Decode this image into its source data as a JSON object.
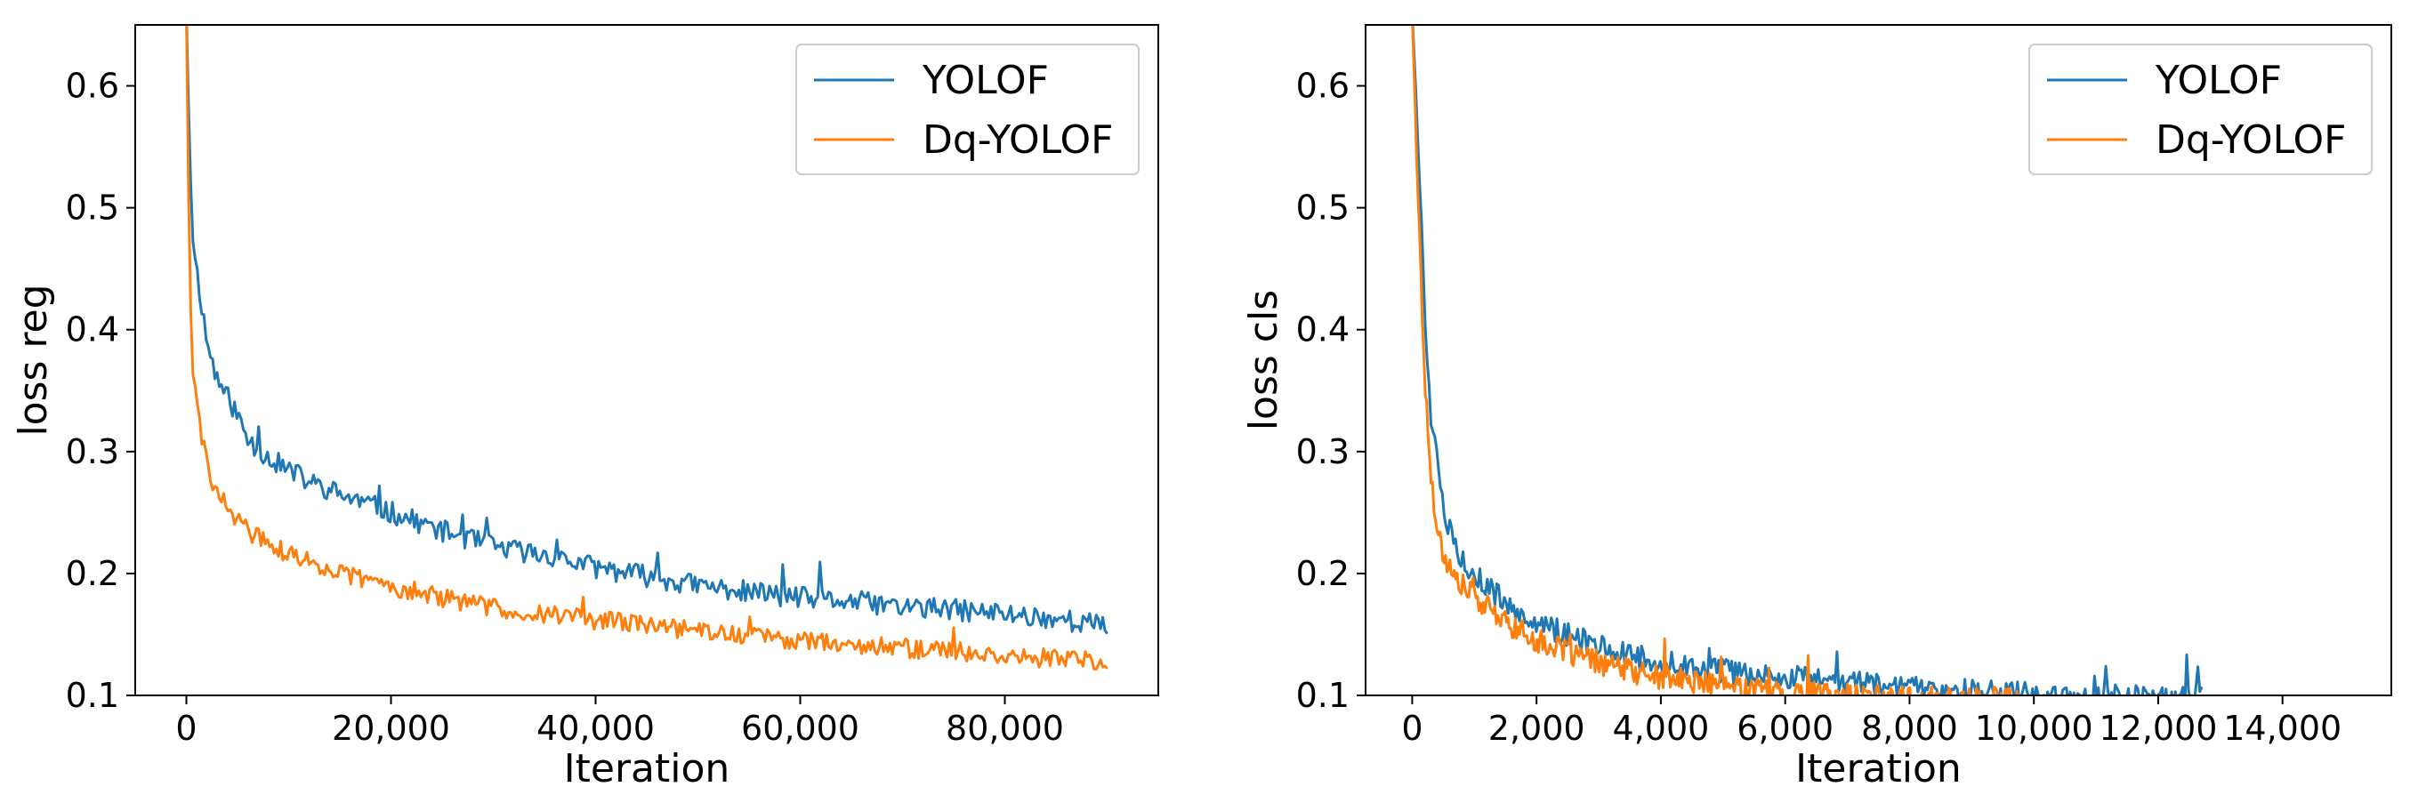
{
  "chart_data": [
    {
      "type": "line",
      "title": "",
      "xlabel": "Iteration",
      "ylabel": "loss reg",
      "xlim": [
        -5000,
        95000
      ],
      "ylim": [
        0.1,
        0.65
      ],
      "xticks": [
        0,
        20000,
        40000,
        60000,
        80000
      ],
      "xtick_labels": [
        "0",
        "20,000",
        "40,000",
        "60,000",
        "80,000"
      ],
      "yticks": [
        0.1,
        0.2,
        0.3,
        0.4,
        0.5,
        0.6
      ],
      "ytick_labels": [
        "0.1",
        "0.2",
        "0.3",
        "0.4",
        "0.5",
        "0.6"
      ],
      "legend_position": "top-right",
      "grid": false,
      "series": [
        {
          "name": "YOLOF",
          "color": "#1f77b4",
          "noise": 0.009,
          "seed": 11,
          "x": [
            0,
            300,
            600,
            1000,
            1500,
            2000,
            3000,
            4000,
            5000,
            6000,
            8000,
            10000,
            12000,
            15000,
            20000,
            25000,
            30000,
            35000,
            40000,
            45000,
            50000,
            55000,
            60000,
            65000,
            70000,
            75000,
            80000,
            85000,
            88000,
            90000
          ],
          "y": [
            0.66,
            0.55,
            0.48,
            0.45,
            0.42,
            0.39,
            0.36,
            0.345,
            0.33,
            0.31,
            0.295,
            0.285,
            0.275,
            0.265,
            0.25,
            0.235,
            0.222,
            0.215,
            0.205,
            0.198,
            0.19,
            0.185,
            0.18,
            0.177,
            0.173,
            0.17,
            0.167,
            0.163,
            0.16,
            0.155
          ]
        },
        {
          "name": "Dq-YOLOF",
          "color": "#ff7f0e",
          "noise": 0.008,
          "seed": 29,
          "x": [
            0,
            300,
            600,
            1000,
            1500,
            2000,
            3000,
            4000,
            5000,
            6000,
            8000,
            10000,
            12000,
            15000,
            20000,
            25000,
            30000,
            35000,
            40000,
            45000,
            50000,
            55000,
            60000,
            65000,
            70000,
            75000,
            80000,
            85000,
            88000,
            90000
          ],
          "y": [
            0.66,
            0.45,
            0.37,
            0.34,
            0.31,
            0.29,
            0.265,
            0.255,
            0.245,
            0.235,
            0.225,
            0.215,
            0.21,
            0.2,
            0.19,
            0.18,
            0.172,
            0.167,
            0.162,
            0.158,
            0.153,
            0.149,
            0.145,
            0.142,
            0.139,
            0.136,
            0.133,
            0.13,
            0.128,
            0.125
          ]
        }
      ]
    },
    {
      "type": "line",
      "title": "",
      "xlabel": "Iteration",
      "ylabel": "loss cls",
      "xlim": [
        -750,
        15750
      ],
      "ylim": [
        0.1,
        0.65
      ],
      "xticks": [
        0,
        2000,
        4000,
        6000,
        8000,
        10000,
        12000,
        14000
      ],
      "xtick_labels": [
        "0",
        "2,000",
        "4,000",
        "6,000",
        "8,000",
        "10,000",
        "12,000",
        "14,000"
      ],
      "yticks": [
        0.1,
        0.2,
        0.3,
        0.4,
        0.5,
        0.6
      ],
      "ytick_labels": [
        "0.1",
        "0.2",
        "0.3",
        "0.4",
        "0.5",
        "0.6"
      ],
      "legend_position": "top-right",
      "grid": false,
      "series": [
        {
          "name": "YOLOF",
          "color": "#1f77b4",
          "noise": 0.01,
          "seed": 5,
          "x": [
            0,
            100,
            200,
            300,
            400,
            500,
            700,
            1000,
            1500,
            2000,
            2500,
            3000,
            3500,
            4000,
            5000,
            6000,
            7000,
            8000,
            9000,
            10000,
            11000,
            12000,
            12700
          ],
          "y": [
            0.66,
            0.55,
            0.42,
            0.33,
            0.29,
            0.25,
            0.22,
            0.2,
            0.175,
            0.16,
            0.15,
            0.14,
            0.133,
            0.127,
            0.12,
            0.115,
            0.11,
            0.106,
            0.103,
            0.101,
            0.1,
            0.099,
            0.099
          ]
        },
        {
          "name": "Dq-YOLOF",
          "color": "#ff7f0e",
          "noise": 0.01,
          "seed": 17,
          "x": [
            0,
            100,
            200,
            300,
            400,
            500,
            700,
            1000,
            1500,
            2000,
            2500,
            3000,
            3500,
            4000,
            5000,
            6000,
            7000,
            8000,
            9000,
            9800
          ],
          "y": [
            0.66,
            0.5,
            0.36,
            0.28,
            0.24,
            0.215,
            0.195,
            0.18,
            0.16,
            0.145,
            0.135,
            0.127,
            0.12,
            0.115,
            0.108,
            0.103,
            0.1,
            0.098,
            0.097,
            0.097
          ]
        }
      ]
    }
  ]
}
